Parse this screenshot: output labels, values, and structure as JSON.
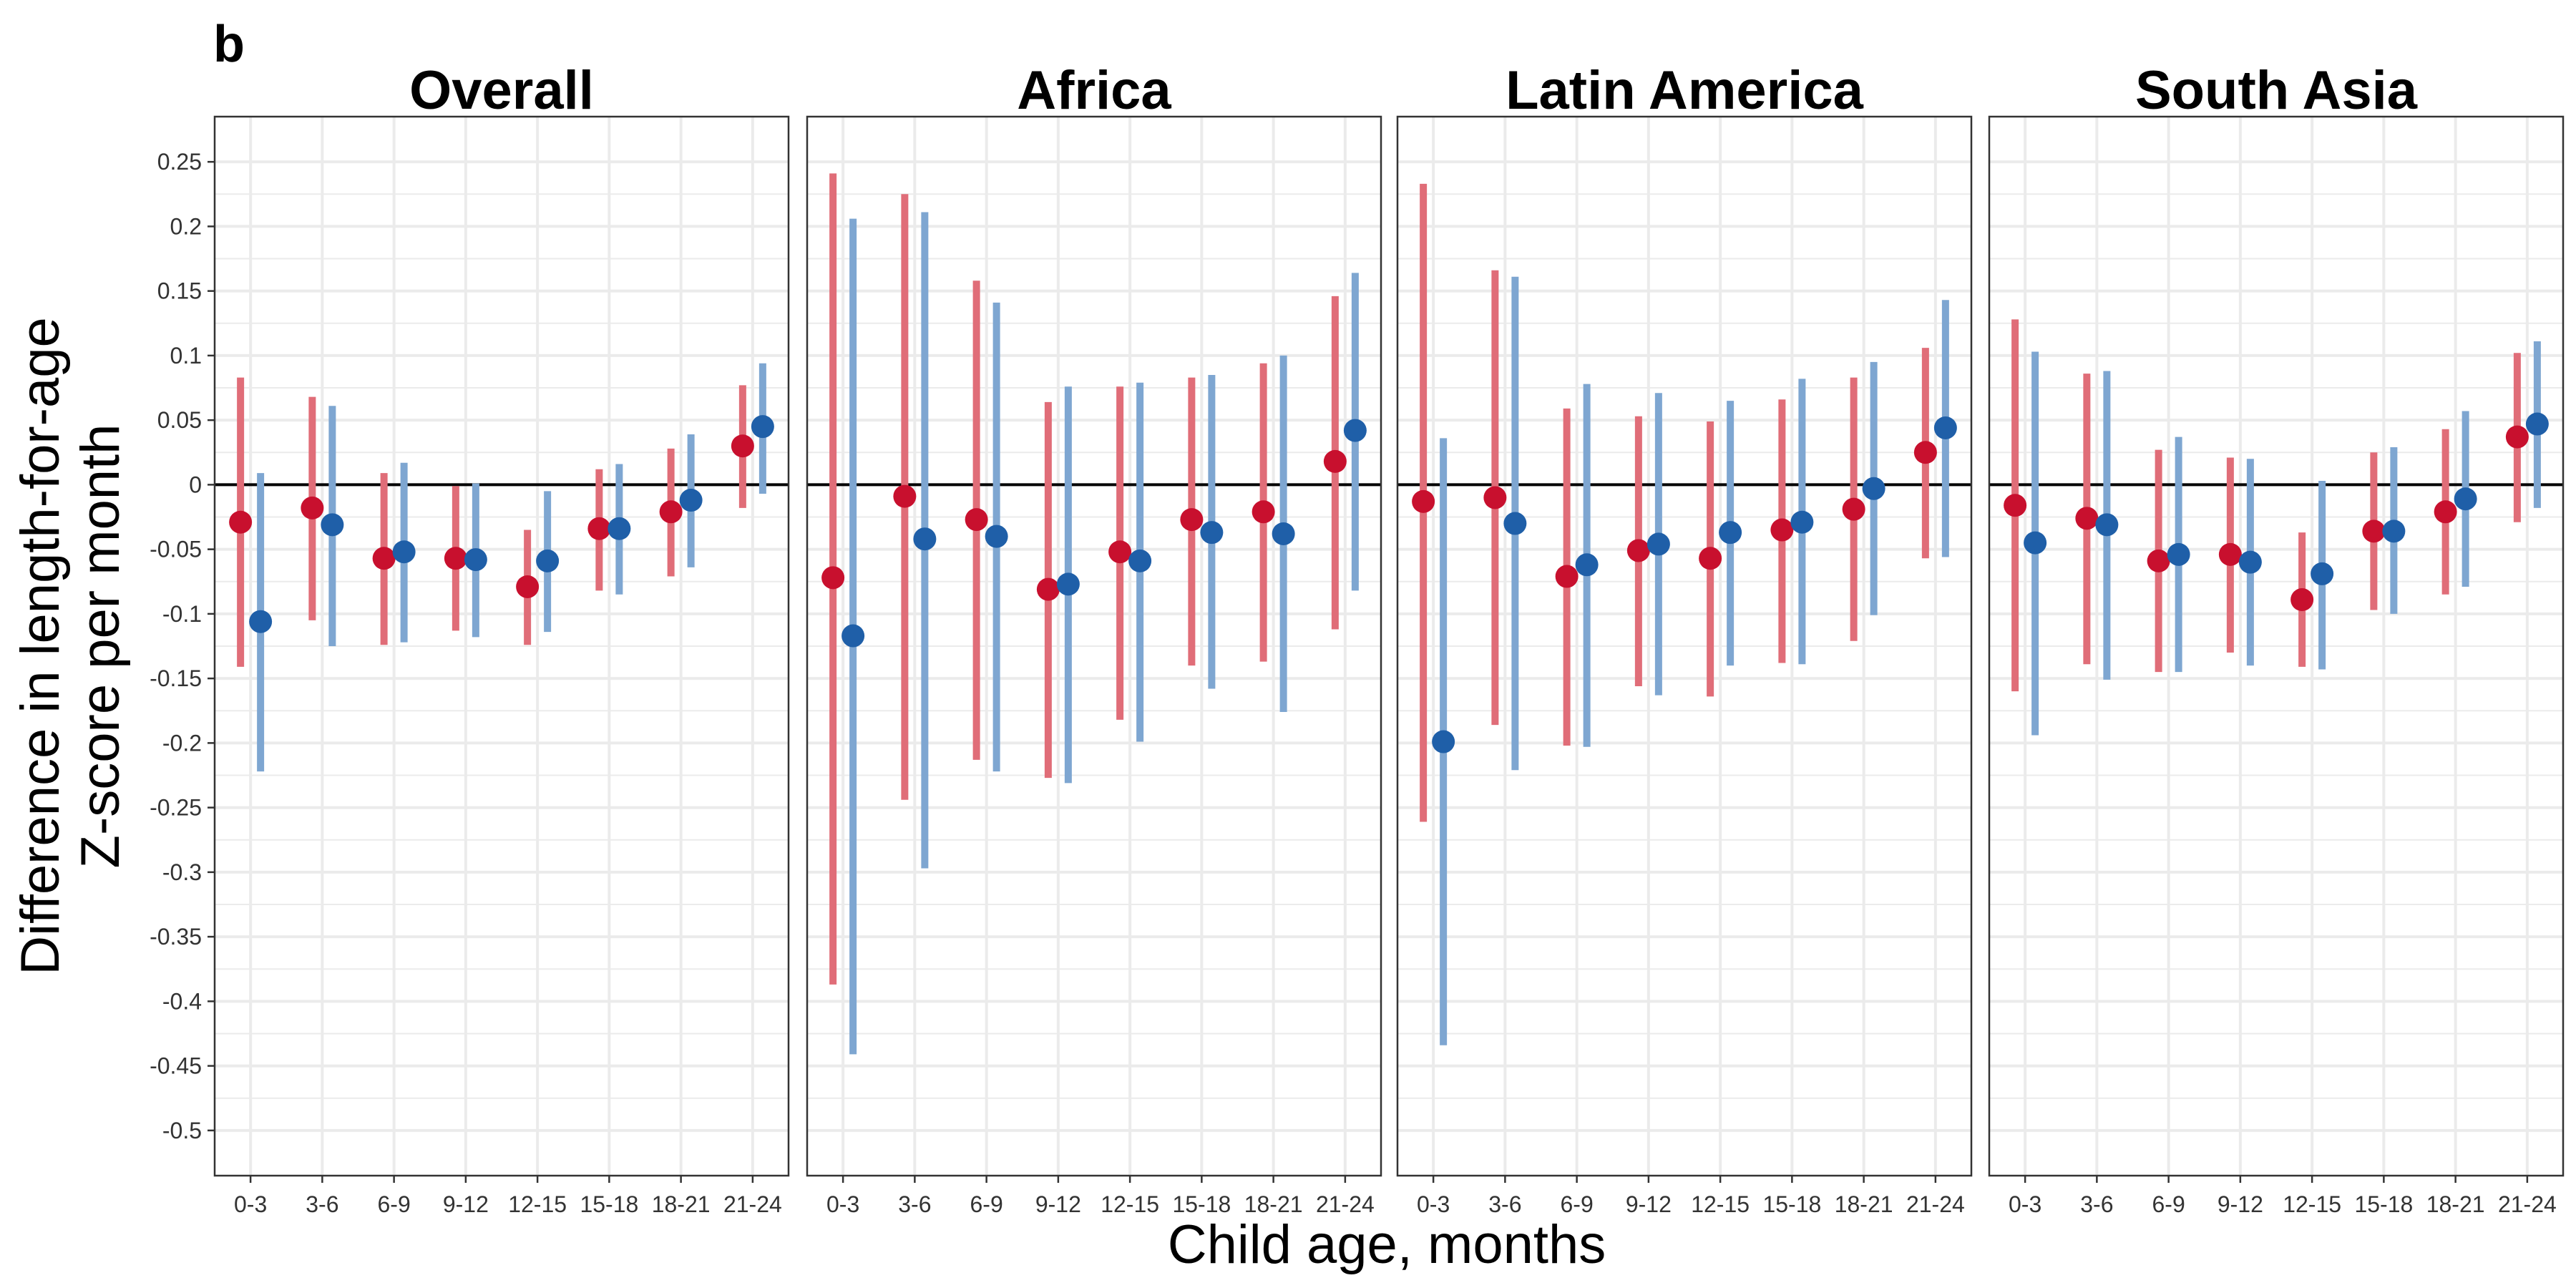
{
  "figure_tag": "b",
  "colors": {
    "red": "#c8102e",
    "blue": "#1f5fa8",
    "red_ci": "#e06d78",
    "blue_ci": "#7ea6d1",
    "grid": "#ebebeb",
    "frame": "#333333",
    "zero": "#000000"
  },
  "chart_data": {
    "type": "scatter",
    "xlabel": "Child age, months",
    "ylabel": [
      "Difference in length-for-age",
      "Z-score per month"
    ],
    "categories": [
      "0-3",
      "3-6",
      "6-9",
      "9-12",
      "12-15",
      "15-18",
      "18-21",
      "21-24"
    ],
    "ylim": [
      -0.535,
      0.285
    ],
    "yticks": [
      "0.25",
      "0.2",
      "0.15",
      "0.1",
      "0.05",
      "0",
      "-0.05",
      "-0.1",
      "-0.15",
      "-0.2",
      "-0.25",
      "-0.3",
      "-0.35",
      "-0.4",
      "-0.45",
      "-0.5"
    ],
    "ytick_values": [
      0.25,
      0.2,
      0.15,
      0.1,
      0.05,
      0,
      -0.05,
      -0.1,
      -0.15,
      -0.2,
      -0.25,
      -0.3,
      -0.35,
      -0.4,
      -0.45,
      -0.5
    ],
    "grid": true,
    "reference_line": 0,
    "panels": [
      {
        "title": "Overall",
        "series": [
          {
            "color": "red",
            "values": [
              -0.029,
              -0.018,
              -0.057,
              -0.057,
              -0.079,
              -0.034,
              -0.021,
              0.03
            ],
            "lower": [
              -0.141,
              -0.105,
              -0.124,
              -0.113,
              -0.124,
              -0.082,
              -0.071,
              -0.018
            ],
            "upper": [
              0.083,
              0.068,
              0.009,
              -0.001,
              -0.035,
              0.012,
              0.028,
              0.077
            ]
          },
          {
            "color": "blue",
            "values": [
              -0.106,
              -0.031,
              -0.052,
              -0.058,
              -0.059,
              -0.034,
              -0.012,
              0.045
            ],
            "lower": [
              -0.222,
              -0.125,
              -0.122,
              -0.118,
              -0.114,
              -0.085,
              -0.064,
              -0.007
            ],
            "upper": [
              0.009,
              0.061,
              0.017,
              0.001,
              -0.005,
              0.016,
              0.039,
              0.094
            ]
          }
        ]
      },
      {
        "title": "Africa",
        "series": [
          {
            "color": "red",
            "values": [
              -0.072,
              -0.009,
              -0.027,
              -0.081,
              -0.052,
              -0.027,
              -0.021,
              0.018
            ],
            "lower": [
              -0.387,
              -0.244,
              -0.213,
              -0.227,
              -0.182,
              -0.14,
              -0.137,
              -0.112
            ],
            "upper": [
              0.241,
              0.225,
              0.158,
              0.064,
              0.076,
              0.083,
              0.094,
              0.146
            ]
          },
          {
            "color": "blue",
            "values": [
              -0.117,
              -0.042,
              -0.04,
              -0.077,
              -0.059,
              -0.037,
              -0.038,
              0.042
            ],
            "lower": [
              -0.441,
              -0.297,
              -0.222,
              -0.231,
              -0.199,
              -0.158,
              -0.176,
              -0.082
            ],
            "upper": [
              0.206,
              0.211,
              0.141,
              0.076,
              0.079,
              0.085,
              0.1,
              0.164
            ]
          }
        ]
      },
      {
        "title": "Latin America",
        "series": [
          {
            "color": "red",
            "values": [
              -0.013,
              -0.01,
              -0.071,
              -0.051,
              -0.057,
              -0.035,
              -0.019,
              0.025
            ],
            "lower": [
              -0.261,
              -0.186,
              -0.202,
              -0.156,
              -0.164,
              -0.138,
              -0.121,
              -0.057
            ],
            "upper": [
              0.233,
              0.166,
              0.059,
              0.053,
              0.049,
              0.066,
              0.083,
              0.106
            ]
          },
          {
            "color": "blue",
            "values": [
              -0.199,
              -0.03,
              -0.062,
              -0.046,
              -0.037,
              -0.029,
              -0.003,
              0.044
            ],
            "lower": [
              -0.434,
              -0.221,
              -0.203,
              -0.163,
              -0.14,
              -0.139,
              -0.101,
              -0.056
            ],
            "upper": [
              0.036,
              0.161,
              0.078,
              0.071,
              0.065,
              0.082,
              0.095,
              0.143
            ]
          }
        ]
      },
      {
        "title": "South Asia",
        "series": [
          {
            "color": "red",
            "values": [
              -0.016,
              -0.026,
              -0.059,
              -0.054,
              -0.089,
              -0.036,
              -0.021,
              0.037
            ],
            "lower": [
              -0.16,
              -0.139,
              -0.145,
              -0.13,
              -0.141,
              -0.097,
              -0.085,
              -0.029
            ],
            "upper": [
              0.128,
              0.086,
              0.027,
              0.021,
              -0.037,
              0.025,
              0.043,
              0.102
            ]
          },
          {
            "color": "blue",
            "values": [
              -0.045,
              -0.031,
              -0.054,
              -0.06,
              -0.069,
              -0.036,
              -0.011,
              0.047
            ],
            "lower": [
              -0.194,
              -0.151,
              -0.145,
              -0.14,
              -0.143,
              -0.1,
              -0.079,
              -0.018
            ],
            "upper": [
              0.103,
              0.088,
              0.037,
              0.02,
              0.003,
              0.029,
              0.057,
              0.111
            ]
          }
        ]
      }
    ]
  }
}
